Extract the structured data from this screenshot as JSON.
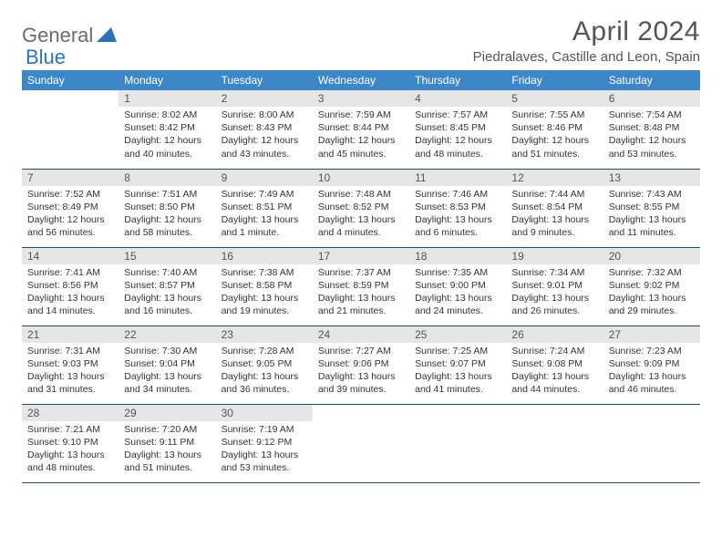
{
  "logo": {
    "text_gray": "General",
    "text_blue": "Blue"
  },
  "title": "April 2024",
  "location": "Piedralaves, Castille and Leon, Spain",
  "colors": {
    "header_bg": "#3d87c7",
    "header_text": "#ffffff",
    "daynum_bg": "#e6e6e6",
    "border": "#1f4e79",
    "logo_gray": "#6b6b6b",
    "logo_blue": "#2e74b5"
  },
  "weekdays": [
    "Sunday",
    "Monday",
    "Tuesday",
    "Wednesday",
    "Thursday",
    "Friday",
    "Saturday"
  ],
  "weeks": [
    [
      null,
      {
        "n": "1",
        "sunrise": "8:02 AM",
        "sunset": "8:42 PM",
        "daylight": "12 hours and 40 minutes."
      },
      {
        "n": "2",
        "sunrise": "8:00 AM",
        "sunset": "8:43 PM",
        "daylight": "12 hours and 43 minutes."
      },
      {
        "n": "3",
        "sunrise": "7:59 AM",
        "sunset": "8:44 PM",
        "daylight": "12 hours and 45 minutes."
      },
      {
        "n": "4",
        "sunrise": "7:57 AM",
        "sunset": "8:45 PM",
        "daylight": "12 hours and 48 minutes."
      },
      {
        "n": "5",
        "sunrise": "7:55 AM",
        "sunset": "8:46 PM",
        "daylight": "12 hours and 51 minutes."
      },
      {
        "n": "6",
        "sunrise": "7:54 AM",
        "sunset": "8:48 PM",
        "daylight": "12 hours and 53 minutes."
      }
    ],
    [
      {
        "n": "7",
        "sunrise": "7:52 AM",
        "sunset": "8:49 PM",
        "daylight": "12 hours and 56 minutes."
      },
      {
        "n": "8",
        "sunrise": "7:51 AM",
        "sunset": "8:50 PM",
        "daylight": "12 hours and 58 minutes."
      },
      {
        "n": "9",
        "sunrise": "7:49 AM",
        "sunset": "8:51 PM",
        "daylight": "13 hours and 1 minute."
      },
      {
        "n": "10",
        "sunrise": "7:48 AM",
        "sunset": "8:52 PM",
        "daylight": "13 hours and 4 minutes."
      },
      {
        "n": "11",
        "sunrise": "7:46 AM",
        "sunset": "8:53 PM",
        "daylight": "13 hours and 6 minutes."
      },
      {
        "n": "12",
        "sunrise": "7:44 AM",
        "sunset": "8:54 PM",
        "daylight": "13 hours and 9 minutes."
      },
      {
        "n": "13",
        "sunrise": "7:43 AM",
        "sunset": "8:55 PM",
        "daylight": "13 hours and 11 minutes."
      }
    ],
    [
      {
        "n": "14",
        "sunrise": "7:41 AM",
        "sunset": "8:56 PM",
        "daylight": "13 hours and 14 minutes."
      },
      {
        "n": "15",
        "sunrise": "7:40 AM",
        "sunset": "8:57 PM",
        "daylight": "13 hours and 16 minutes."
      },
      {
        "n": "16",
        "sunrise": "7:38 AM",
        "sunset": "8:58 PM",
        "daylight": "13 hours and 19 minutes."
      },
      {
        "n": "17",
        "sunrise": "7:37 AM",
        "sunset": "8:59 PM",
        "daylight": "13 hours and 21 minutes."
      },
      {
        "n": "18",
        "sunrise": "7:35 AM",
        "sunset": "9:00 PM",
        "daylight": "13 hours and 24 minutes."
      },
      {
        "n": "19",
        "sunrise": "7:34 AM",
        "sunset": "9:01 PM",
        "daylight": "13 hours and 26 minutes."
      },
      {
        "n": "20",
        "sunrise": "7:32 AM",
        "sunset": "9:02 PM",
        "daylight": "13 hours and 29 minutes."
      }
    ],
    [
      {
        "n": "21",
        "sunrise": "7:31 AM",
        "sunset": "9:03 PM",
        "daylight": "13 hours and 31 minutes."
      },
      {
        "n": "22",
        "sunrise": "7:30 AM",
        "sunset": "9:04 PM",
        "daylight": "13 hours and 34 minutes."
      },
      {
        "n": "23",
        "sunrise": "7:28 AM",
        "sunset": "9:05 PM",
        "daylight": "13 hours and 36 minutes."
      },
      {
        "n": "24",
        "sunrise": "7:27 AM",
        "sunset": "9:06 PM",
        "daylight": "13 hours and 39 minutes."
      },
      {
        "n": "25",
        "sunrise": "7:25 AM",
        "sunset": "9:07 PM",
        "daylight": "13 hours and 41 minutes."
      },
      {
        "n": "26",
        "sunrise": "7:24 AM",
        "sunset": "9:08 PM",
        "daylight": "13 hours and 44 minutes."
      },
      {
        "n": "27",
        "sunrise": "7:23 AM",
        "sunset": "9:09 PM",
        "daylight": "13 hours and 46 minutes."
      }
    ],
    [
      {
        "n": "28",
        "sunrise": "7:21 AM",
        "sunset": "9:10 PM",
        "daylight": "13 hours and 48 minutes."
      },
      {
        "n": "29",
        "sunrise": "7:20 AM",
        "sunset": "9:11 PM",
        "daylight": "13 hours and 51 minutes."
      },
      {
        "n": "30",
        "sunrise": "7:19 AM",
        "sunset": "9:12 PM",
        "daylight": "13 hours and 53 minutes."
      },
      null,
      null,
      null,
      null
    ]
  ],
  "labels": {
    "sunrise": "Sunrise:",
    "sunset": "Sunset:",
    "daylight": "Daylight:"
  }
}
